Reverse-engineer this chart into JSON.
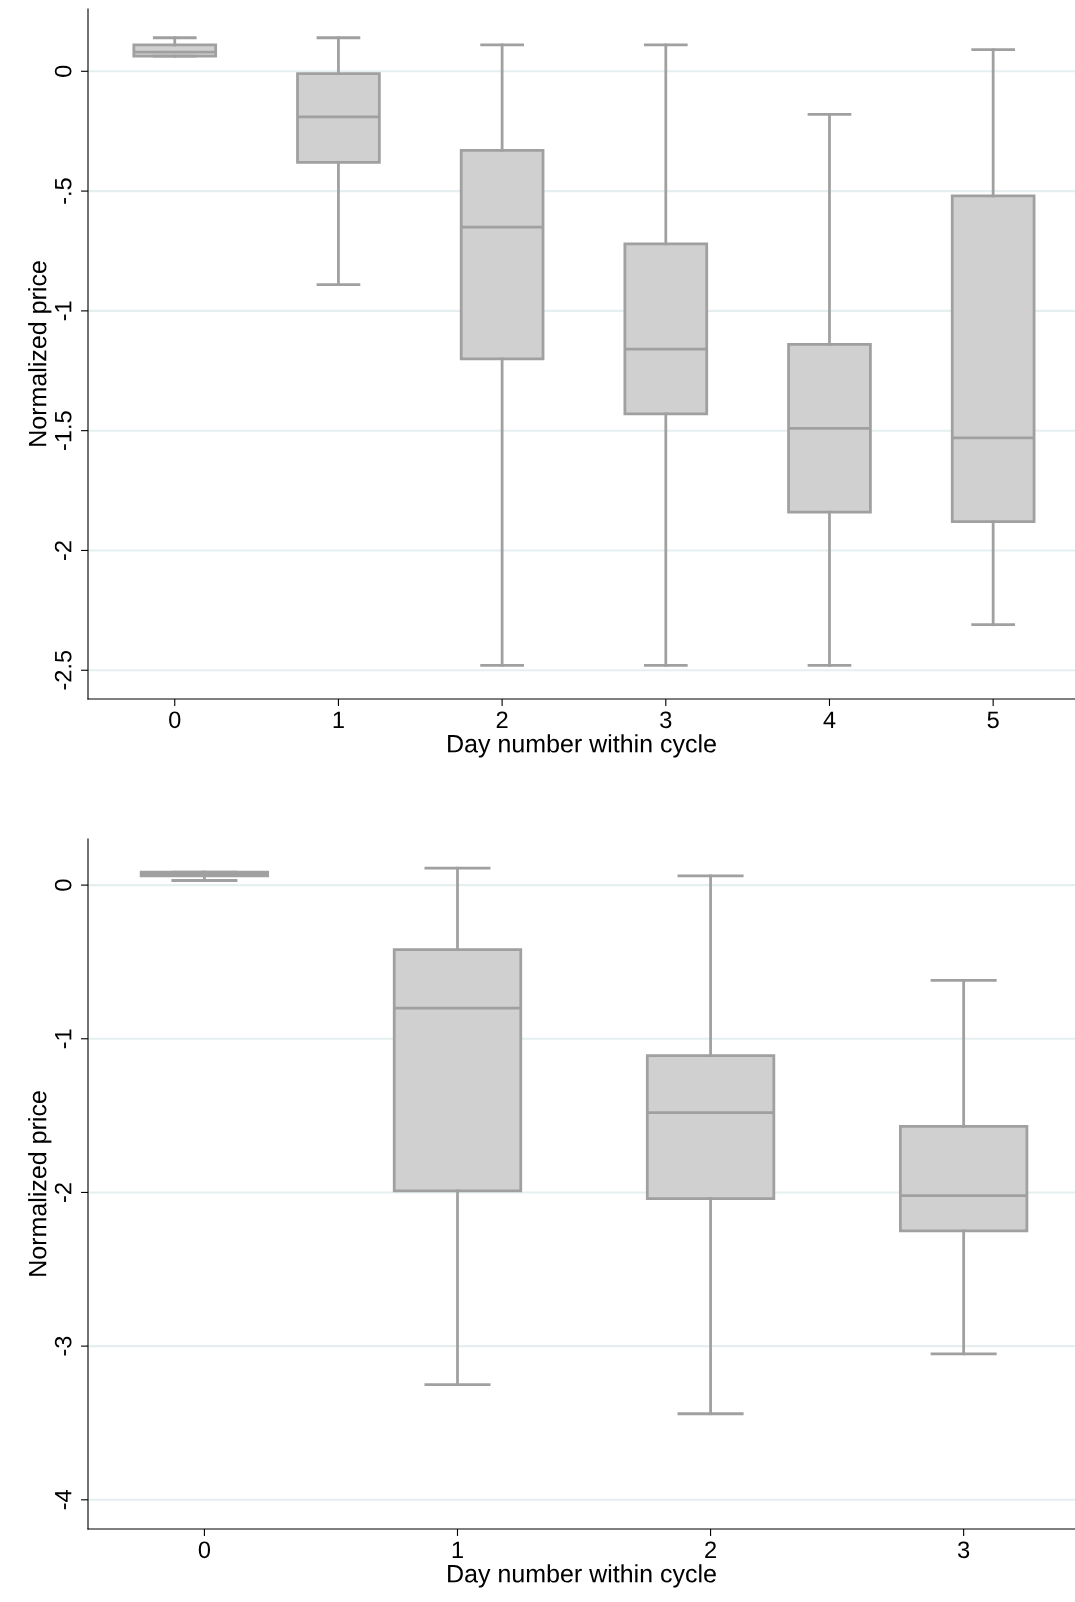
{
  "chart_data": [
    {
      "type": "box",
      "xlabel": "Day number within cycle",
      "ylabel": "Normalized price",
      "categories": [
        "0",
        "1",
        "2",
        "3",
        "4",
        "5"
      ],
      "color": "#d0d0d0",
      "grid": "y",
      "ylim": [
        -2.62,
        0.26
      ],
      "yticks": [
        0,
        {
          "value": -0.5,
          "label": "-.5"
        },
        -1,
        -1.5,
        -2,
        -2.5
      ],
      "boxes": [
        {
          "low": 0.063,
          "q1": 0.063,
          "median": 0.08,
          "q3": 0.11,
          "high": 0.14
        },
        {
          "low": -0.89,
          "q1": -0.38,
          "median": -0.19,
          "q3": -0.01,
          "high": 0.14
        },
        {
          "low": -2.48,
          "q1": -1.2,
          "median": -0.65,
          "q3": -0.33,
          "high": 0.11
        },
        {
          "low": -2.48,
          "q1": -1.43,
          "median": -1.16,
          "q3": -0.72,
          "high": 0.11
        },
        {
          "low": -2.48,
          "q1": -1.84,
          "median": -1.49,
          "q3": -1.14,
          "high": -0.18
        },
        {
          "low": -2.31,
          "q1": -1.88,
          "median": -1.53,
          "q3": -0.52,
          "high": 0.09
        }
      ]
    },
    {
      "type": "box",
      "xlabel": "Day number within cycle",
      "ylabel": "Normalized price",
      "categories": [
        "0",
        "1",
        "2",
        "3"
      ],
      "color": "#d0d0d0",
      "grid": "y",
      "ylim": [
        -4.19,
        0.3
      ],
      "yticks": [
        0,
        -1,
        -2,
        -3,
        -4
      ],
      "boxes": [
        {
          "low": 0.03,
          "q1": 0.06,
          "median": 0.07,
          "q3": 0.085,
          "high": 0.085
        },
        {
          "low": -3.25,
          "q1": -1.99,
          "median": -0.8,
          "q3": -0.42,
          "high": 0.11
        },
        {
          "low": -3.44,
          "q1": -2.04,
          "median": -1.48,
          "q3": -1.11,
          "high": 0.06
        },
        {
          "low": -3.05,
          "q1": -2.25,
          "median": -2.02,
          "q3": -1.57,
          "high": -0.62
        }
      ]
    }
  ]
}
